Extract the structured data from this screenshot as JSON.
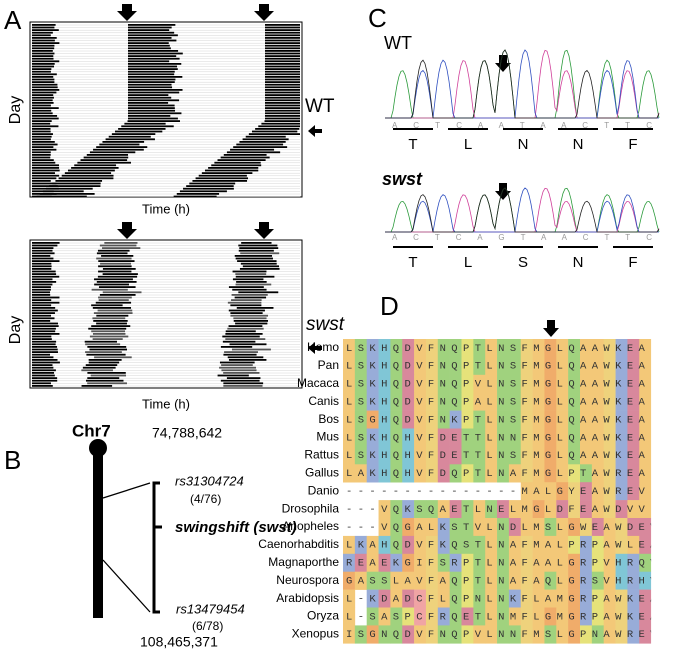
{
  "panel_a": {
    "label": "A",
    "day_label": "Day",
    "time_label": "Time (h)",
    "wt_label": "WT",
    "mutant_label": "swst"
  },
  "panel_b": {
    "label": "B",
    "chromosome": "Chr7",
    "start": "74,788,642",
    "marker1": "rs31304724",
    "marker1_ratio": "(4/76)",
    "gene": "swingshift (swst)",
    "marker2": "rs13479454",
    "marker2_ratio": "(6/78)",
    "end": "108,465,371"
  },
  "panel_c": {
    "label": "C",
    "wt": {
      "name": "WT",
      "bases": "A C T C A A T A A C T T C",
      "amino_acids": [
        "T",
        "L",
        "N",
        "N",
        "F"
      ]
    },
    "mutant": {
      "name": "swst",
      "bases": "A C T C A G T A A C T T C",
      "amino_acids": [
        "T",
        "L",
        "S",
        "N",
        "F"
      ]
    }
  },
  "panel_d": {
    "label": "D",
    "rows": [
      {
        "species": "Homo",
        "sequence": "LSKHQDVFNQPTLNSFMGLQAAWKEA"
      },
      {
        "species": "Pan",
        "sequence": "LSKHQDVFNQPTLNSFMGLQAAWKEA"
      },
      {
        "species": "Macaca",
        "sequence": "LSKHQDVFNQPVLNSFMGLQAAWKEA"
      },
      {
        "species": "Canis",
        "sequence": "LSKHQDVFNQPALNSFMGLQAAWKEA"
      },
      {
        "species": "Bos",
        "sequence": "LSGHQDVFNKPTLNSFMGLQAAWKEA"
      },
      {
        "species": "Mus",
        "sequence": "LSKHQHVFDETTLNNFMGLQAAWKEA"
      },
      {
        "species": "Rattus",
        "sequence": "LSKHQHVFDETTLNSFMGLQAAWKEA"
      },
      {
        "species": "Gallus",
        "sequence": "LAKHQHVFDQPTLNAFMGLPTAWREA"
      },
      {
        "species": "Danio",
        "sequence": "---------------MALGYEAWREV"
      },
      {
        "species": "Drosophila",
        "sequence": "---VQKSQAETLNELMGLDFEAWDVV"
      },
      {
        "species": "Anopheles",
        "sequence": "---VQGALKSTVLNDLMSLGWEAWDEV"
      },
      {
        "species": "Caenorhabditis",
        "sequence": "LKAHQDVFKQSTLNAFMALPRPAWLEA"
      },
      {
        "species": "Magnaporthe",
        "sequence": "REAEKGIFSRPTLNAFAALGRPVHRQV"
      },
      {
        "species": "Neurospora",
        "sequence": "GASSLAVFAQPTLNAFAQLGRSVHRHV"
      },
      {
        "species": "Arabidopsis",
        "sequence": "L-KDADCFLQPNLNKFLAMGRPAWKEA"
      },
      {
        "species": "Oryza",
        "sequence": "L-SASPCFRQETLNMFLGMGRPAWKEA"
      },
      {
        "species": "Xenopus",
        "sequence": "ISGNQDVFNQPVLNNFMSLGPNAWREV"
      }
    ]
  }
}
